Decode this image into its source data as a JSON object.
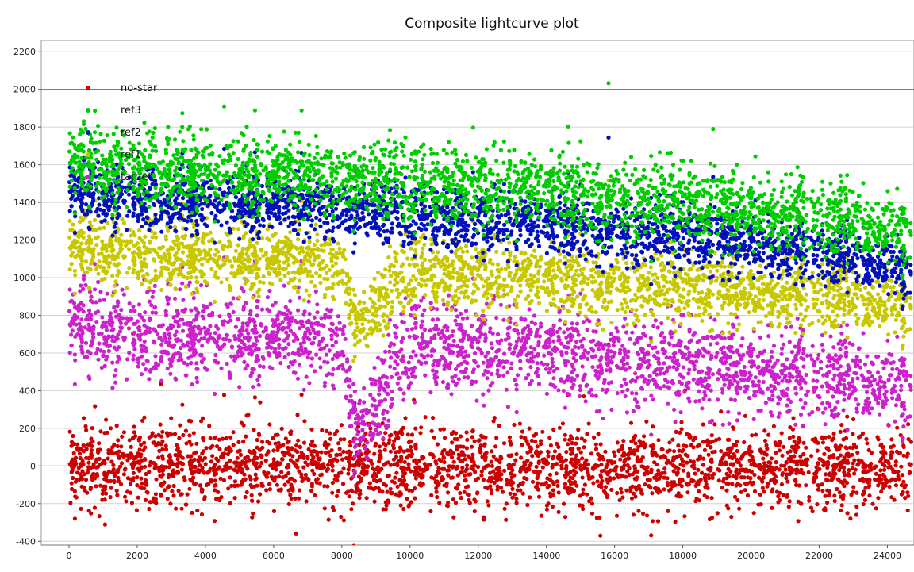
{
  "chart_data": {
    "type": "scatter",
    "title": "Composite lightcurve plot",
    "xlabel": "",
    "ylabel": "",
    "xlim": [
      -1800,
      24700
    ],
    "ylim": [
      -420,
      2260
    ],
    "x_ticks": [
      0,
      2000,
      4000,
      6000,
      8000,
      10000,
      12000,
      14000,
      16000,
      18000,
      20000,
      22000,
      24000
    ],
    "y_ticks": [
      -400,
      -200,
      0,
      200,
      400,
      600,
      800,
      1000,
      1200,
      1400,
      1600,
      1800,
      2000,
      2200
    ],
    "grid": true,
    "legend_position": "top-left",
    "series": [
      {
        "name": "no-star",
        "color": "#cc0000",
        "x": [
          0,
          2000,
          4000,
          6000,
          8000,
          8400,
          8700,
          10000,
          12000,
          14000,
          16000,
          18000,
          20000,
          22000,
          24000,
          24700
        ],
        "y": [
          0,
          -10,
          -10,
          -10,
          -10,
          -20,
          -20,
          -10,
          -10,
          -10,
          -10,
          -10,
          -10,
          -10,
          -10,
          -10
        ],
        "spread": 120
      },
      {
        "name": "ref3",
        "color": "#00cc00",
        "x": [
          0,
          2000,
          4000,
          6000,
          8000,
          10000,
          12000,
          14000,
          16000,
          18000,
          20000,
          22000,
          24000,
          24700
        ],
        "y": [
          1600,
          1580,
          1560,
          1540,
          1520,
          1500,
          1480,
          1460,
          1430,
          1400,
          1360,
          1320,
          1260,
          1230
        ],
        "spread": 110
      },
      {
        "name": "ref2",
        "color": "#0011bb",
        "x": [
          0,
          2000,
          4000,
          6000,
          8000,
          10000,
          12000,
          14000,
          16000,
          18000,
          20000,
          22000,
          24000,
          24700
        ],
        "y": [
          1450,
          1420,
          1400,
          1380,
          1360,
          1330,
          1300,
          1280,
          1250,
          1220,
          1180,
          1130,
          1060,
          1020
        ],
        "spread": 90
      },
      {
        "name": "ref1",
        "color": "#c8c800",
        "x": [
          0,
          2000,
          4000,
          6000,
          8000,
          8400,
          8700,
          10000,
          12000,
          14000,
          16000,
          18000,
          20000,
          22000,
          24000,
          24700
        ],
        "y": [
          1150,
          1130,
          1110,
          1090,
          1070,
          760,
          760,
          1040,
          1010,
          990,
          970,
          950,
          930,
          900,
          860,
          840
        ],
        "spread": 100
      },
      {
        "name": "target",
        "color": "#cc22cc",
        "x": [
          0,
          2000,
          4000,
          6000,
          8000,
          8400,
          8700,
          10000,
          12000,
          14000,
          16000,
          18000,
          20000,
          22000,
          24000,
          24700
        ],
        "y": [
          740,
          700,
          690,
          680,
          650,
          200,
          200,
          650,
          620,
          600,
          570,
          540,
          510,
          470,
          430,
          410
        ],
        "spread": 130
      }
    ]
  }
}
